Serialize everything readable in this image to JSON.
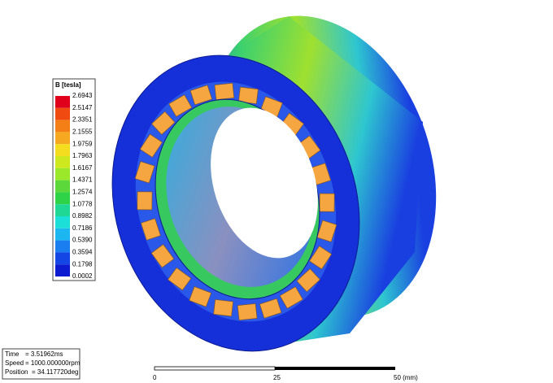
{
  "legend": {
    "title": "B [tesla]",
    "levels": [
      "2.6943",
      "2.5147",
      "2.3351",
      "2.1555",
      "1.9759",
      "1.7963",
      "1.6167",
      "1.4371",
      "1.2574",
      "1.0778",
      "0.8982",
      "0.7186",
      "0.5390",
      "0.3594",
      "0.1798",
      "0.0002"
    ],
    "colors": [
      "#e0001c",
      "#f04a10",
      "#f57f17",
      "#f6a820",
      "#f4dd1e",
      "#cde81e",
      "#9be82a",
      "#5cd83a",
      "#2ed348",
      "#20d896",
      "#1ce0d8",
      "#1cb6f0",
      "#1a7ef0",
      "#1446e6",
      "#0c1ad0"
    ]
  },
  "info": {
    "rows": [
      [
        "Time",
        "= 3.51962ms"
      ],
      [
        "Speed",
        "= 1000.000000rpm"
      ],
      [
        "Position",
        "= 34.117720deg"
      ]
    ]
  },
  "scale_bar": {
    "labels": [
      "0",
      "25",
      "50 (mm)"
    ]
  }
}
